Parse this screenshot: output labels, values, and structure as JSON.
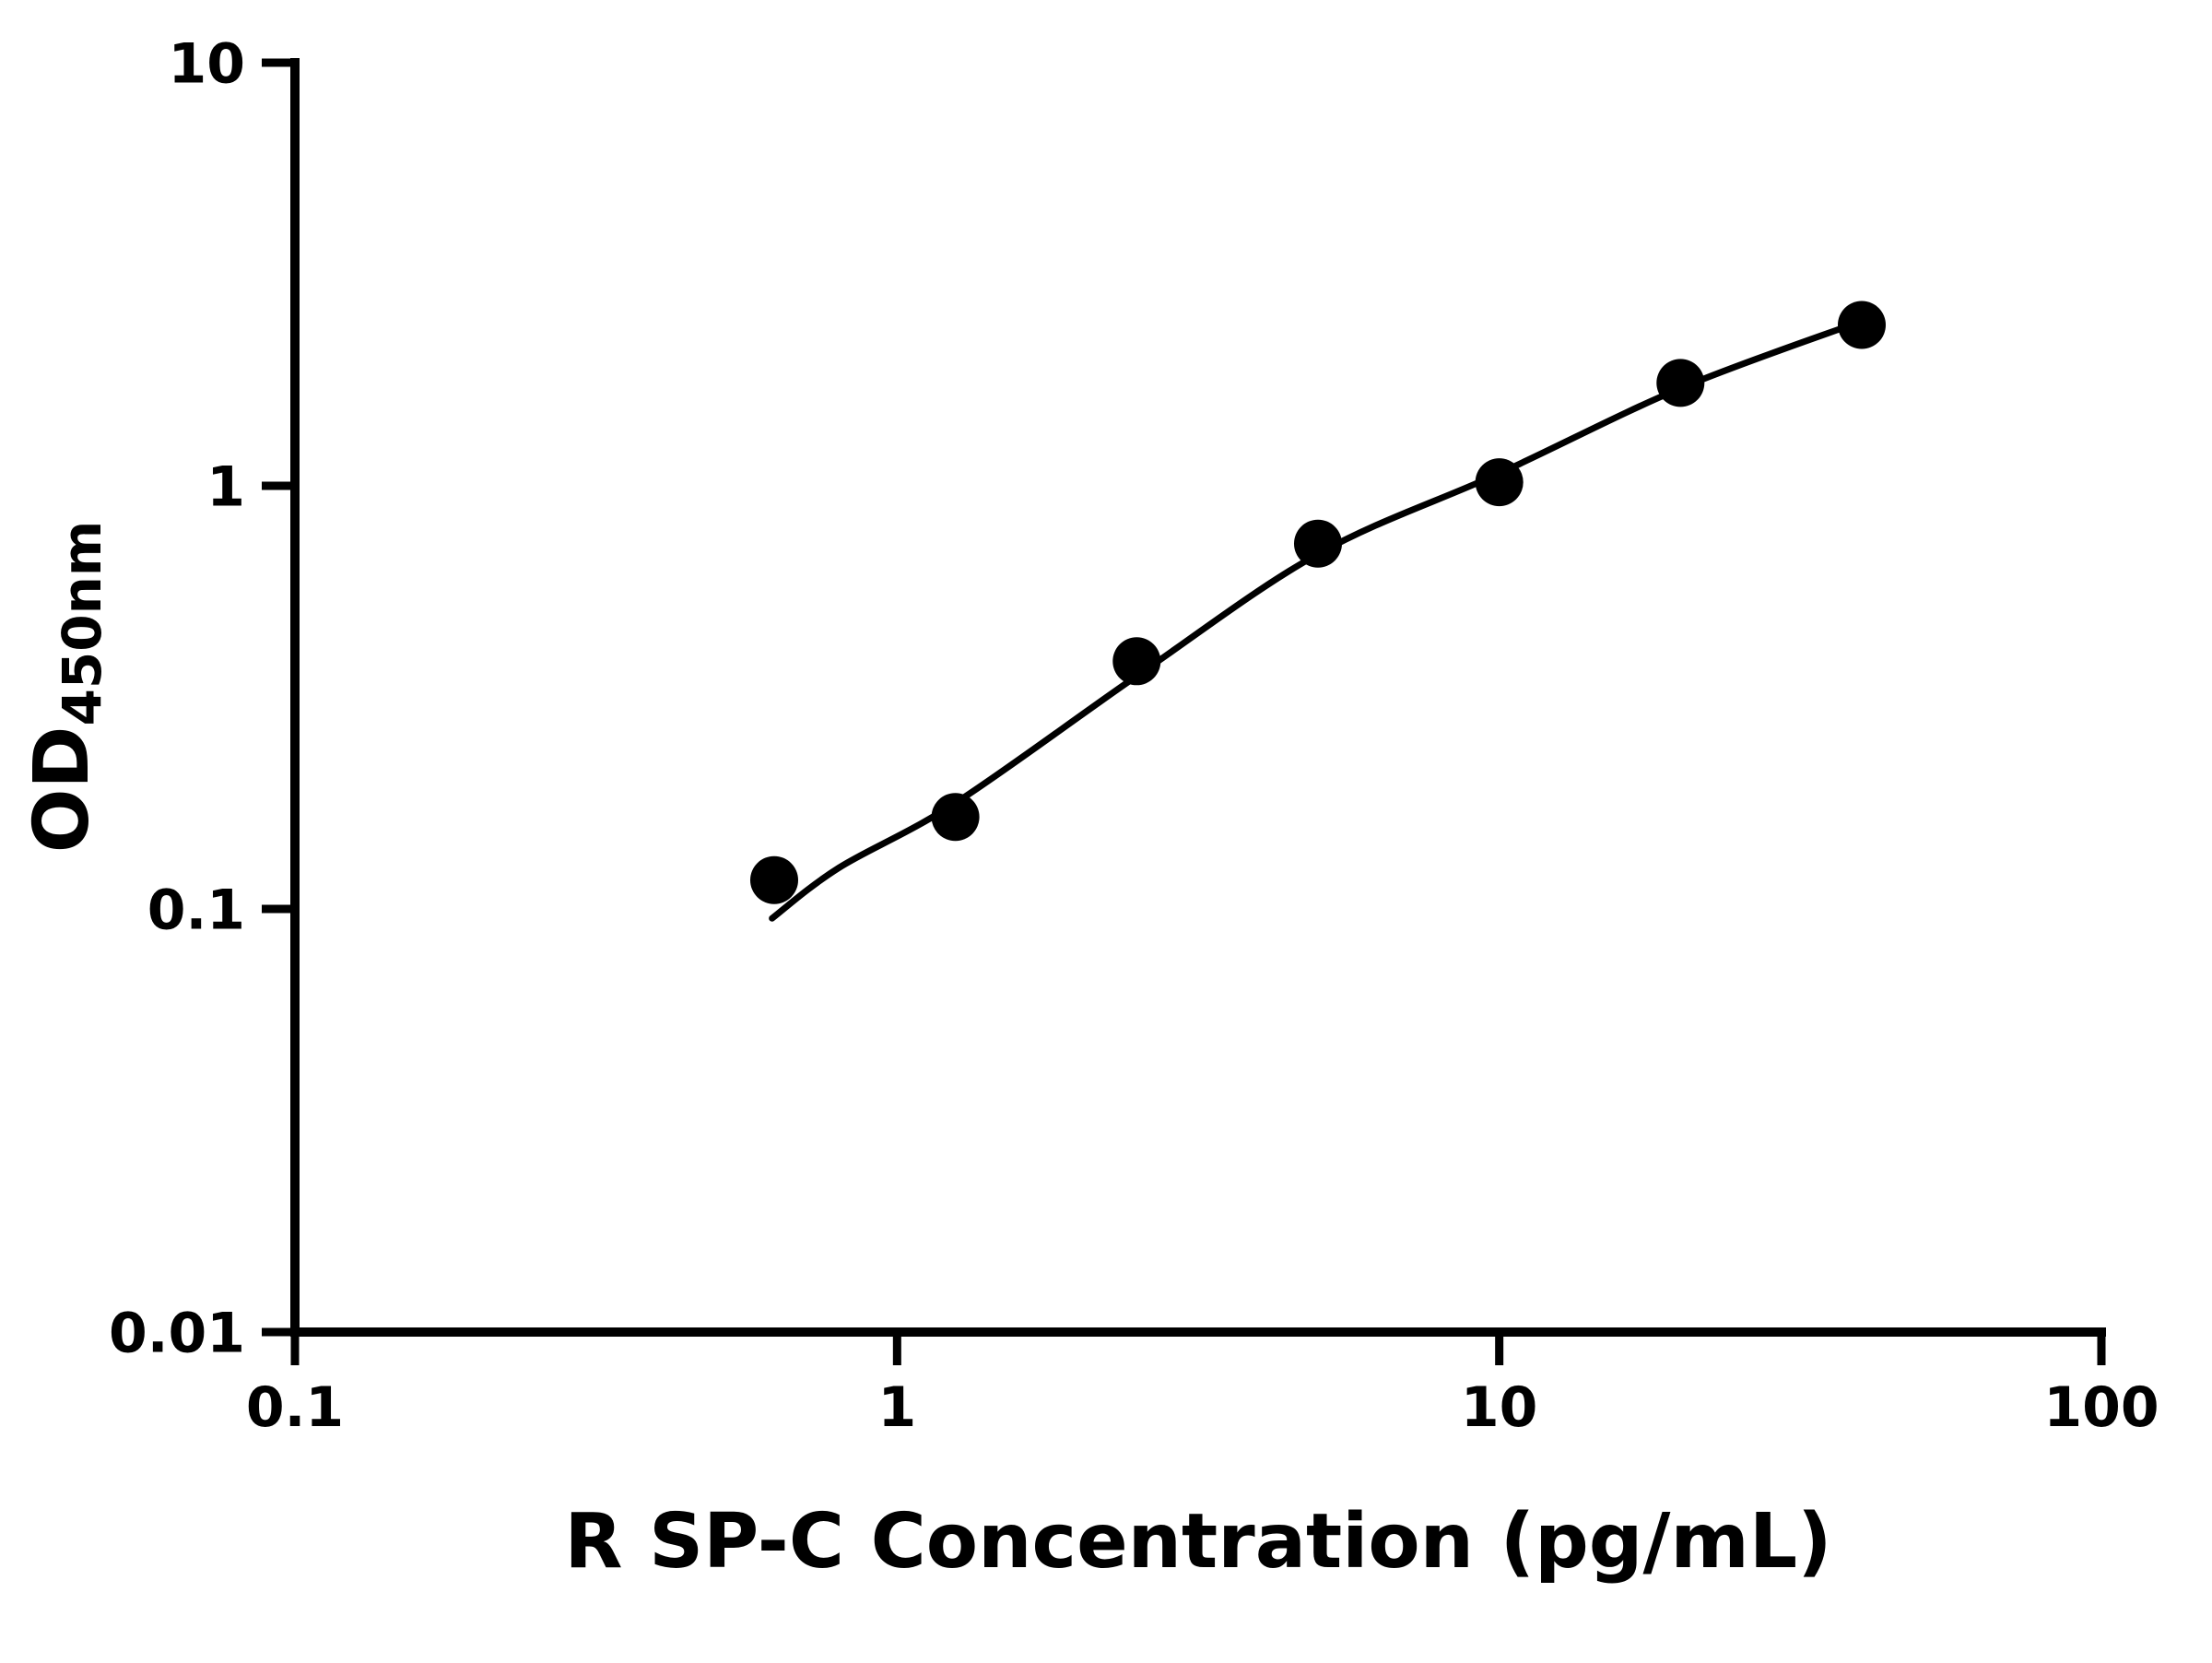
{
  "chart_data": {
    "type": "scatter",
    "title": "",
    "xlabel": "R SP-C Concentration (pg/mL)",
    "ylabel_main": "OD",
    "ylabel_sub": "450nm",
    "xscale": "log",
    "yscale": "log",
    "xlim": [
      0.1,
      100
    ],
    "ylim": [
      0.01,
      10
    ],
    "xticks": [
      0.1,
      1,
      10,
      100
    ],
    "xtick_labels": [
      "0.1",
      "1",
      "10",
      "100"
    ],
    "yticks": [
      0.01,
      0.1,
      1,
      10
    ],
    "ytick_labels": [
      "0.01",
      "0.1",
      "1",
      "10"
    ],
    "legend": "none",
    "grid": "off",
    "series": [
      {
        "name": "standard-points",
        "type": "scatter",
        "x": [
          0.625,
          1.25,
          2.5,
          5,
          10,
          20,
          40
        ],
        "y": [
          0.117,
          0.165,
          0.385,
          0.73,
          1.02,
          1.75,
          2.4
        ]
      },
      {
        "name": "fit-curve",
        "type": "line",
        "x": [
          0.62,
          0.8,
          1.25,
          2.5,
          5,
          10,
          20,
          40
        ],
        "y": [
          0.095,
          0.125,
          0.178,
          0.355,
          0.69,
          1.07,
          1.7,
          2.45
        ]
      }
    ],
    "colors": {
      "marker": "#000000",
      "line": "#000000",
      "axis": "#000000",
      "background": "#ffffff"
    }
  }
}
